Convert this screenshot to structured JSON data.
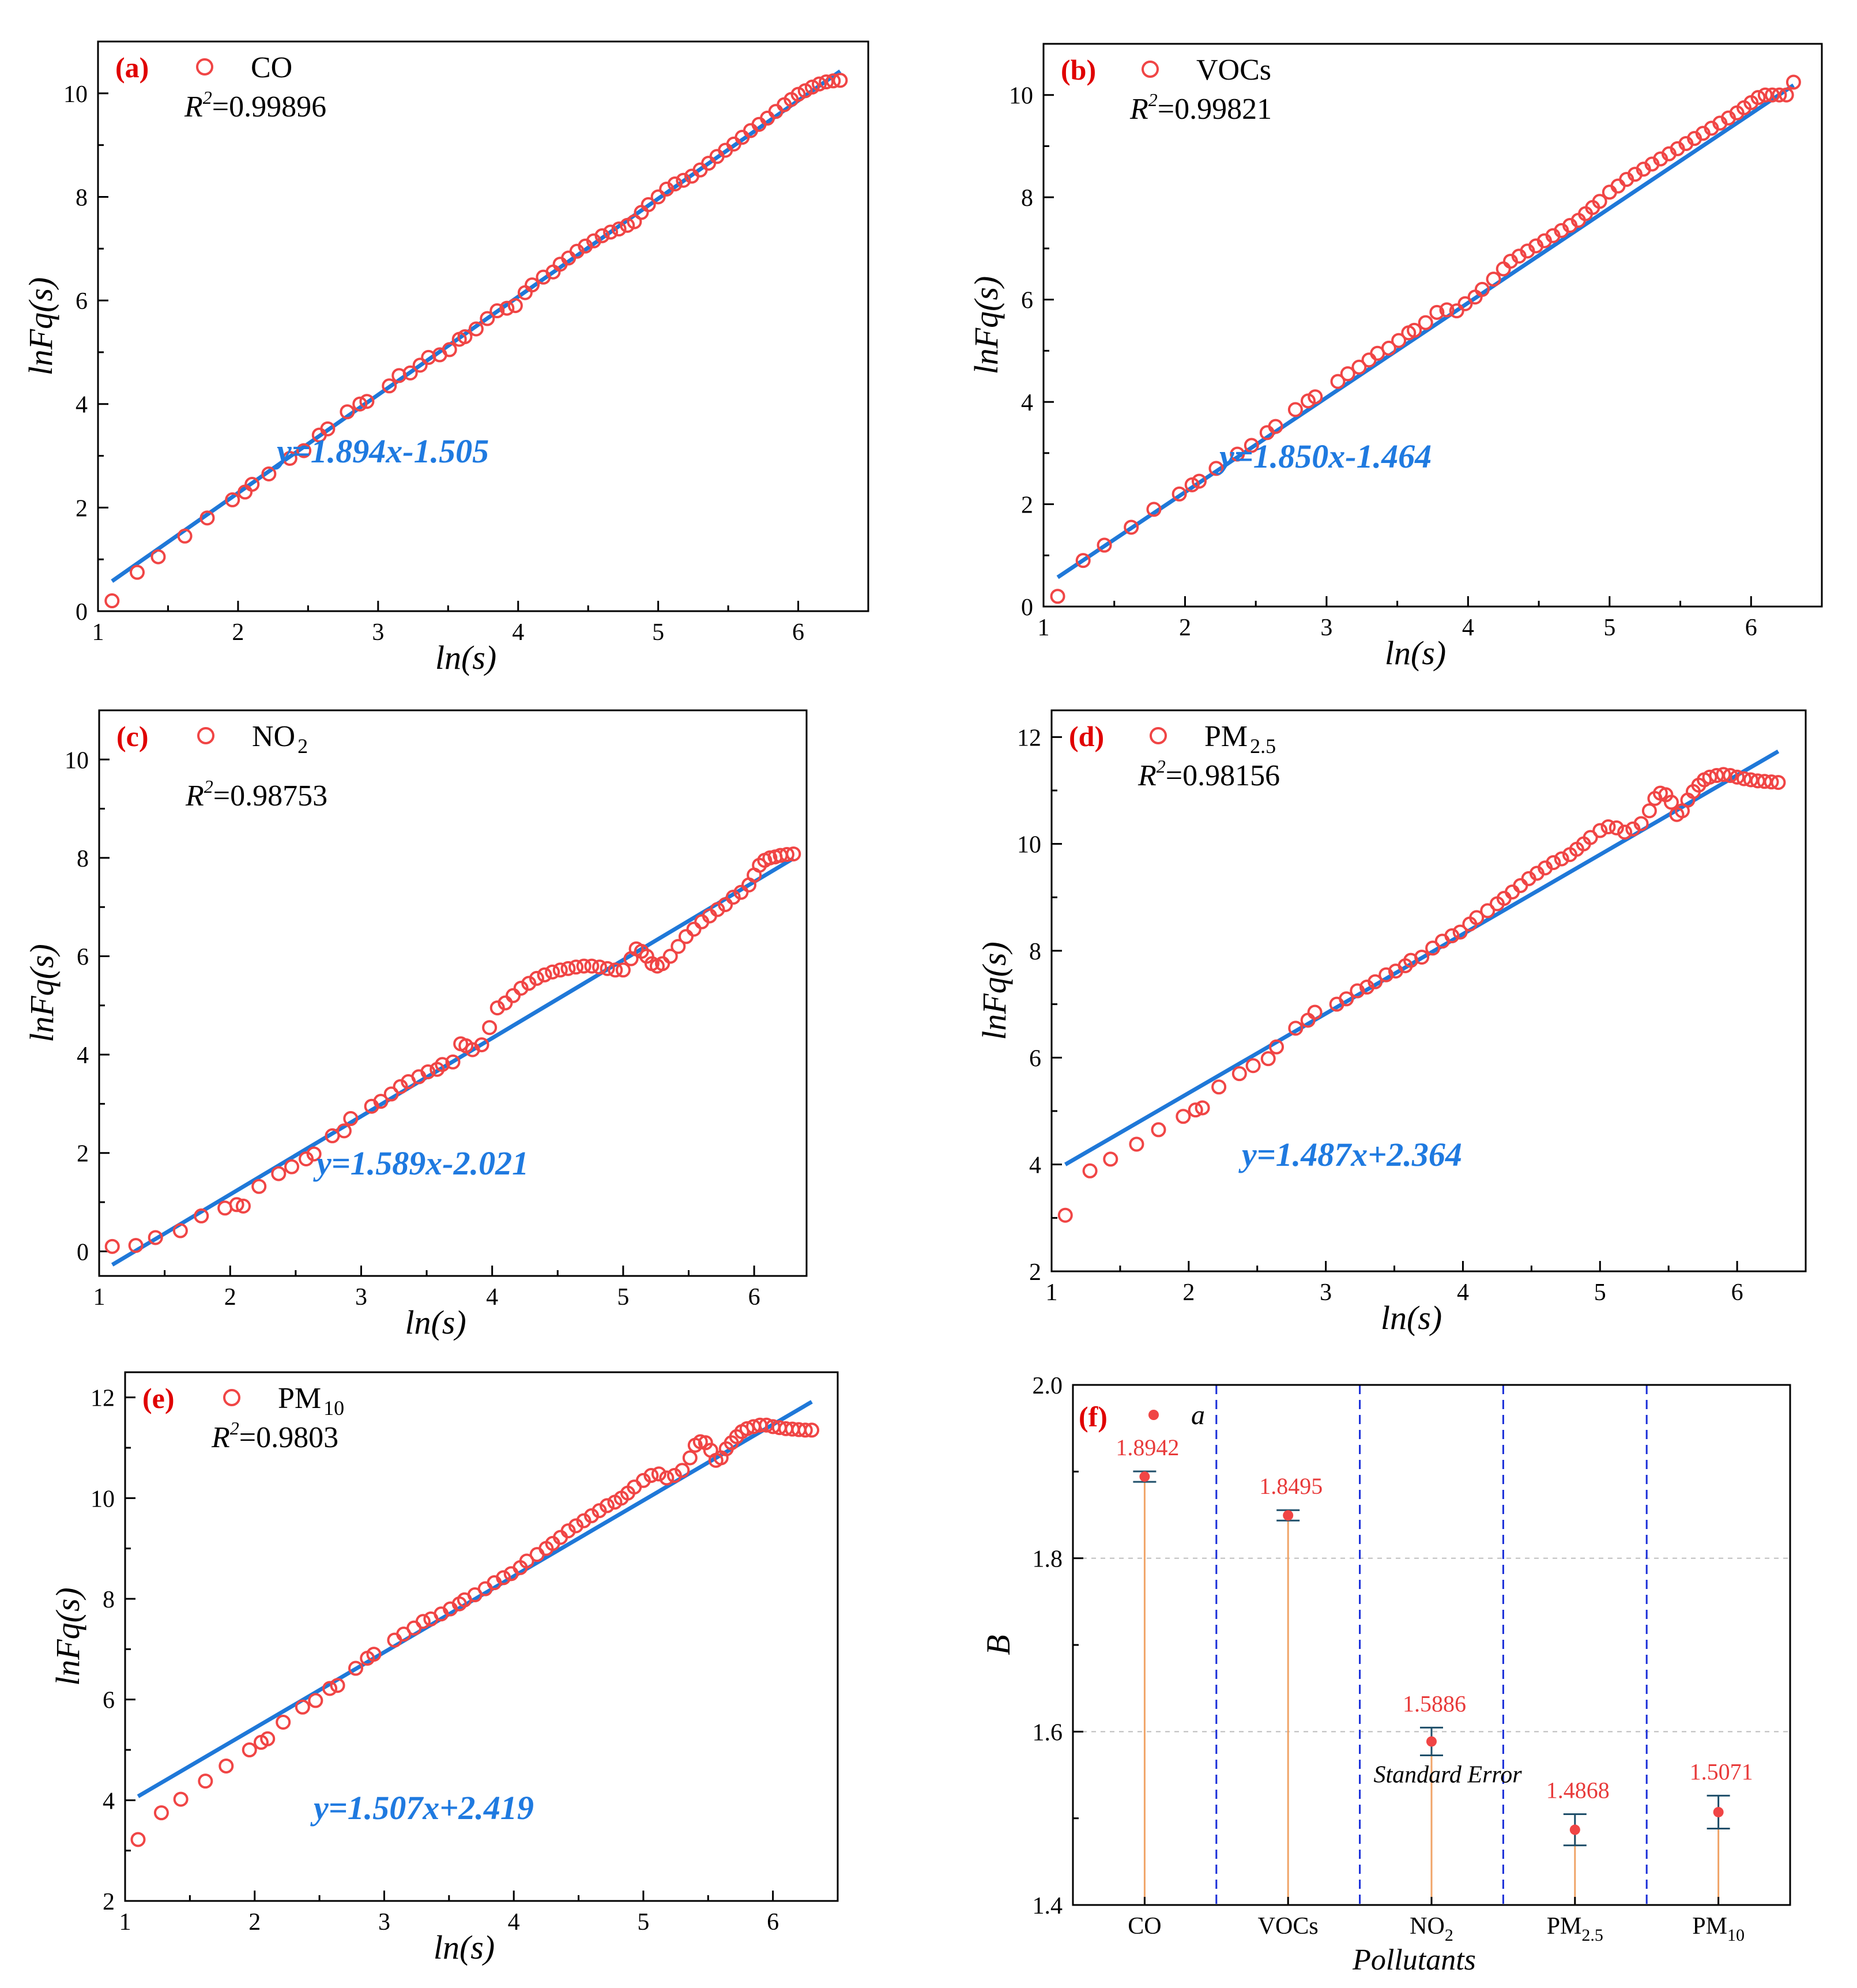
{
  "colors": {
    "marker": "#f04545",
    "fit": "#1f78d8",
    "stem": "#f0a468",
    "divider": "#1a2fd8",
    "errorbar": "#1f4f6a",
    "label": "#e83a3a",
    "tag": "#e00000"
  },
  "chart_data": [
    {
      "type": "scatter",
      "panel": "(a)",
      "legend": {
        "label": "CO",
        "sub": ""
      },
      "r2": {
        "prefix": "R",
        "sup": "2",
        "value": "=0.99896"
      },
      "equation": "y=1.894x-1.505",
      "fit": {
        "slope": 1.894,
        "intercept": -1.505,
        "x_range": [
          1.1,
          6.3
        ]
      },
      "xlabel": "ln(s)",
      "ylabel": "lnFq(s)",
      "xlim": [
        1,
        6.5
      ],
      "ylim": [
        0,
        11
      ],
      "xticks": [
        "1",
        "2",
        "3",
        "4",
        "5",
        "6"
      ],
      "yticks": [
        "0",
        "2",
        "4",
        "6",
        "8",
        "10"
      ],
      "points": {
        "x": [
          1.1,
          1.28,
          1.43,
          1.62,
          1.78,
          1.96,
          2.05,
          2.1,
          2.22,
          2.37,
          2.47,
          2.58,
          2.64,
          2.78,
          2.87,
          2.92,
          3.08,
          3.15,
          3.23,
          3.3,
          3.36,
          3.44,
          3.51,
          3.58,
          3.62,
          3.7,
          3.78,
          3.85,
          3.92,
          3.98,
          4.05,
          4.1,
          4.18,
          4.25,
          4.3,
          4.36,
          4.42,
          4.48,
          4.54,
          4.6,
          4.66,
          4.72,
          4.78,
          4.83,
          4.88,
          4.93,
          5.0,
          5.06,
          5.12,
          5.18,
          5.24,
          5.3,
          5.36,
          5.42,
          5.48,
          5.54,
          5.6,
          5.66,
          5.72,
          5.78,
          5.84,
          5.9,
          5.95,
          6.0,
          6.05,
          6.1,
          6.15,
          6.2,
          6.25,
          6.3
        ],
        "y": [
          0.2,
          0.75,
          1.05,
          1.45,
          1.8,
          2.15,
          2.3,
          2.45,
          2.65,
          2.95,
          3.1,
          3.4,
          3.52,
          3.85,
          4.0,
          4.05,
          4.35,
          4.55,
          4.6,
          4.75,
          4.9,
          4.95,
          5.05,
          5.25,
          5.3,
          5.45,
          5.65,
          5.8,
          5.85,
          5.9,
          6.15,
          6.3,
          6.45,
          6.55,
          6.7,
          6.82,
          6.95,
          7.05,
          7.15,
          7.25,
          7.32,
          7.38,
          7.45,
          7.52,
          7.7,
          7.85,
          8.0,
          8.15,
          8.25,
          8.32,
          8.4,
          8.52,
          8.65,
          8.78,
          8.9,
          9.02,
          9.15,
          9.28,
          9.4,
          9.52,
          9.65,
          9.78,
          9.88,
          9.98,
          10.05,
          10.12,
          10.18,
          10.22,
          10.24,
          10.25
        ]
      }
    },
    {
      "type": "scatter",
      "panel": "(b)",
      "legend": {
        "label": "VOCs",
        "sub": ""
      },
      "r2": {
        "prefix": "R",
        "sup": "2",
        "value": "=0.99821"
      },
      "equation": "y=1.850x-1.464",
      "fit": {
        "slope": 1.85,
        "intercept": -1.464,
        "x_range": [
          1.1,
          6.3
        ]
      },
      "xlabel": "ln(s)",
      "ylabel": "lnFq(s)",
      "xlim": [
        1,
        6.5
      ],
      "ylim": [
        0,
        11
      ],
      "xticks": [
        "1",
        "2",
        "3",
        "4",
        "5",
        "6"
      ],
      "yticks": [
        "0",
        "2",
        "4",
        "6",
        "8",
        "10"
      ],
      "points": {
        "x": [
          1.1,
          1.28,
          1.43,
          1.62,
          1.78,
          1.96,
          2.05,
          2.1,
          2.22,
          2.37,
          2.47,
          2.58,
          2.64,
          2.78,
          2.87,
          2.92,
          3.08,
          3.15,
          3.23,
          3.3,
          3.36,
          3.44,
          3.51,
          3.58,
          3.62,
          3.7,
          3.78,
          3.85,
          3.92,
          3.98,
          4.05,
          4.1,
          4.18,
          4.25,
          4.3,
          4.36,
          4.42,
          4.48,
          4.54,
          4.6,
          4.66,
          4.72,
          4.78,
          4.83,
          4.88,
          4.93,
          5.0,
          5.06,
          5.12,
          5.18,
          5.24,
          5.3,
          5.36,
          5.42,
          5.48,
          5.54,
          5.6,
          5.66,
          5.72,
          5.78,
          5.84,
          5.9,
          5.95,
          6.0,
          6.05,
          6.1,
          6.15,
          6.2,
          6.25,
          6.3
        ],
        "y": [
          0.2,
          0.9,
          1.2,
          1.55,
          1.9,
          2.2,
          2.38,
          2.45,
          2.7,
          2.98,
          3.15,
          3.4,
          3.52,
          3.85,
          4.02,
          4.1,
          4.4,
          4.55,
          4.68,
          4.82,
          4.95,
          5.05,
          5.2,
          5.35,
          5.4,
          5.55,
          5.75,
          5.8,
          5.78,
          5.92,
          6.05,
          6.2,
          6.4,
          6.6,
          6.75,
          6.85,
          6.95,
          7.05,
          7.15,
          7.25,
          7.35,
          7.45,
          7.55,
          7.68,
          7.8,
          7.92,
          8.1,
          8.22,
          8.35,
          8.45,
          8.55,
          8.65,
          8.75,
          8.85,
          8.95,
          9.05,
          9.15,
          9.25,
          9.35,
          9.45,
          9.55,
          9.65,
          9.75,
          9.85,
          9.95,
          10.0,
          10.0,
          10.0,
          10.0,
          10.25
        ]
      }
    },
    {
      "type": "scatter",
      "panel": "(c)",
      "legend": {
        "label": "NO",
        "sub": "2"
      },
      "r2": {
        "prefix": "R",
        "sup": "2",
        "value": "=0.98753"
      },
      "equation": "y=1.589x-2.021",
      "fit": {
        "slope": 1.589,
        "intercept": -2.021,
        "x_range": [
          1.1,
          6.3
        ]
      },
      "xlabel": "ln(s)",
      "ylabel": "lnFq(s)",
      "xlim": [
        1,
        6.4
      ],
      "ylim": [
        -0.5,
        11
      ],
      "xticks": [
        "1",
        "2",
        "3",
        "4",
        "5",
        "6"
      ],
      "yticks": [
        "0",
        "2",
        "4",
        "6",
        "8",
        "10"
      ],
      "points": {
        "x": [
          1.1,
          1.28,
          1.43,
          1.62,
          1.78,
          1.96,
          2.05,
          2.1,
          2.22,
          2.37,
          2.47,
          2.58,
          2.64,
          2.78,
          2.87,
          2.92,
          3.08,
          3.15,
          3.23,
          3.3,
          3.36,
          3.44,
          3.51,
          3.58,
          3.62,
          3.7,
          3.76,
          3.8,
          3.85,
          3.92,
          3.98,
          4.04,
          4.1,
          4.16,
          4.22,
          4.28,
          4.34,
          4.4,
          4.46,
          4.52,
          4.58,
          4.64,
          4.7,
          4.76,
          4.82,
          4.88,
          4.94,
          5.0,
          5.06,
          5.1,
          5.14,
          5.18,
          5.22,
          5.26,
          5.3,
          5.36,
          5.42,
          5.48,
          5.54,
          5.6,
          5.66,
          5.72,
          5.78,
          5.84,
          5.9,
          5.96,
          6.0,
          6.04,
          6.08,
          6.12,
          6.16,
          6.2,
          6.25,
          6.3
        ],
        "y": [
          0.1,
          0.12,
          0.28,
          0.42,
          0.72,
          0.88,
          0.95,
          0.92,
          1.32,
          1.58,
          1.72,
          1.88,
          1.98,
          2.35,
          2.45,
          2.7,
          2.95,
          3.05,
          3.2,
          3.35,
          3.45,
          3.55,
          3.65,
          3.7,
          3.8,
          3.85,
          4.22,
          4.18,
          4.1,
          4.2,
          4.55,
          4.95,
          5.05,
          5.2,
          5.35,
          5.45,
          5.55,
          5.62,
          5.68,
          5.72,
          5.75,
          5.78,
          5.8,
          5.8,
          5.78,
          5.75,
          5.72,
          5.72,
          5.95,
          6.15,
          6.1,
          6.0,
          5.85,
          5.8,
          5.85,
          6.0,
          6.2,
          6.4,
          6.55,
          6.7,
          6.82,
          6.95,
          7.05,
          7.2,
          7.3,
          7.45,
          7.65,
          7.85,
          7.95,
          8.0,
          8.02,
          8.05,
          8.07,
          8.08
        ]
      }
    },
    {
      "type": "scatter",
      "panel": "(d)",
      "legend": {
        "label": "PM",
        "sub": "2.5"
      },
      "r2": {
        "prefix": "R",
        "sup": "2",
        "value": "=0.98156"
      },
      "equation": "y=1.487x+2.364",
      "fit": {
        "slope": 1.487,
        "intercept": 2.364,
        "x_range": [
          1.1,
          6.3
        ]
      },
      "xlabel": "ln(s)",
      "ylabel": "lnFq(s)",
      "xlim": [
        1,
        6.5
      ],
      "ylim": [
        2,
        12.5
      ],
      "xticks": [
        "1",
        "2",
        "3",
        "4",
        "5",
        "6"
      ],
      "yticks": [
        "2",
        "4",
        "6",
        "8",
        "10",
        "12"
      ],
      "points": {
        "x": [
          1.1,
          1.28,
          1.43,
          1.62,
          1.78,
          1.96,
          2.05,
          2.1,
          2.22,
          2.37,
          2.47,
          2.58,
          2.64,
          2.78,
          2.87,
          2.92,
          3.08,
          3.15,
          3.23,
          3.3,
          3.36,
          3.44,
          3.51,
          3.58,
          3.62,
          3.7,
          3.78,
          3.85,
          3.92,
          3.98,
          4.05,
          4.1,
          4.18,
          4.25,
          4.3,
          4.36,
          4.42,
          4.48,
          4.54,
          4.6,
          4.66,
          4.72,
          4.78,
          4.83,
          4.88,
          4.93,
          5.0,
          5.06,
          5.12,
          5.18,
          5.24,
          5.3,
          5.36,
          5.4,
          5.44,
          5.48,
          5.52,
          5.56,
          5.6,
          5.64,
          5.68,
          5.72,
          5.76,
          5.8,
          5.85,
          5.9,
          5.95,
          6.0,
          6.05,
          6.1,
          6.15,
          6.2,
          6.25,
          6.3
        ],
        "y": [
          3.05,
          3.88,
          4.1,
          4.38,
          4.65,
          4.9,
          5.02,
          5.06,
          5.45,
          5.7,
          5.85,
          5.98,
          6.2,
          6.55,
          6.7,
          6.85,
          7.0,
          7.1,
          7.25,
          7.32,
          7.42,
          7.55,
          7.62,
          7.72,
          7.82,
          7.88,
          8.05,
          8.18,
          8.28,
          8.35,
          8.5,
          8.62,
          8.75,
          8.88,
          8.98,
          9.1,
          9.22,
          9.35,
          9.45,
          9.55,
          9.65,
          9.72,
          9.8,
          9.9,
          10.0,
          10.12,
          10.25,
          10.32,
          10.3,
          10.22,
          10.28,
          10.38,
          10.62,
          10.85,
          10.95,
          10.92,
          10.78,
          10.55,
          10.62,
          10.82,
          10.98,
          11.1,
          11.2,
          11.25,
          11.28,
          11.3,
          11.28,
          11.25,
          11.22,
          11.2,
          11.18,
          11.17,
          11.16,
          11.15
        ]
      }
    },
    {
      "type": "scatter",
      "panel": "(e)",
      "legend": {
        "label": "PM",
        "sub": "10"
      },
      "r2": {
        "prefix": "R",
        "sup": "2",
        "value": "=0.9803"
      },
      "equation": "y=1.507x+2.419",
      "fit": {
        "slope": 1.507,
        "intercept": 2.419,
        "x_range": [
          1.1,
          6.3
        ]
      },
      "xlabel": "ln(s)",
      "ylabel": "lnFq(s)",
      "xlim": [
        1,
        6.5
      ],
      "ylim": [
        2,
        12.5
      ],
      "xticks": [
        "1",
        "2",
        "3",
        "4",
        "5",
        "6"
      ],
      "yticks": [
        "2",
        "4",
        "6",
        "8",
        "10",
        "12"
      ],
      "points": {
        "x": [
          1.1,
          1.28,
          1.43,
          1.62,
          1.78,
          1.96,
          2.05,
          2.1,
          2.22,
          2.37,
          2.47,
          2.58,
          2.64,
          2.78,
          2.87,
          2.92,
          3.08,
          3.15,
          3.23,
          3.3,
          3.36,
          3.44,
          3.51,
          3.58,
          3.62,
          3.7,
          3.78,
          3.85,
          3.92,
          3.98,
          4.05,
          4.1,
          4.18,
          4.25,
          4.3,
          4.36,
          4.42,
          4.48,
          4.54,
          4.6,
          4.66,
          4.72,
          4.78,
          4.83,
          4.88,
          4.93,
          5.0,
          5.06,
          5.12,
          5.18,
          5.24,
          5.3,
          5.36,
          5.4,
          5.44,
          5.48,
          5.52,
          5.56,
          5.6,
          5.64,
          5.68,
          5.72,
          5.76,
          5.8,
          5.85,
          5.9,
          5.95,
          6.0,
          6.05,
          6.1,
          6.15,
          6.2,
          6.25,
          6.3
        ],
        "y": [
          3.22,
          3.75,
          4.02,
          4.38,
          4.68,
          5.0,
          5.15,
          5.22,
          5.55,
          5.85,
          5.98,
          6.22,
          6.28,
          6.62,
          6.82,
          6.9,
          7.18,
          7.3,
          7.42,
          7.55,
          7.6,
          7.7,
          7.8,
          7.9,
          7.98,
          8.08,
          8.2,
          8.32,
          8.42,
          8.5,
          8.62,
          8.75,
          8.88,
          9.0,
          9.1,
          9.22,
          9.35,
          9.45,
          9.55,
          9.65,
          9.75,
          9.85,
          9.92,
          10.0,
          10.1,
          10.22,
          10.35,
          10.45,
          10.48,
          10.4,
          10.45,
          10.55,
          10.8,
          11.05,
          11.12,
          11.1,
          10.95,
          10.75,
          10.8,
          10.98,
          11.1,
          11.22,
          11.32,
          11.38,
          11.42,
          11.45,
          11.45,
          11.42,
          11.4,
          11.38,
          11.37,
          11.36,
          11.35,
          11.35
        ]
      }
    },
    {
      "type": "errorbar",
      "panel": "(f)",
      "legend": {
        "label": "a"
      },
      "categories": [
        {
          "main": "CO",
          "sub": ""
        },
        {
          "main": "VOCs",
          "sub": ""
        },
        {
          "main": "NO",
          "sub": "2"
        },
        {
          "main": "PM",
          "sub": "2.5"
        },
        {
          "main": "PM",
          "sub": "10"
        }
      ],
      "values": [
        1.8942,
        1.8495,
        1.5886,
        1.4868,
        1.5071
      ],
      "value_labels": [
        "1.8942",
        "1.8495",
        "1.5886",
        "1.4868",
        "1.5071"
      ],
      "errors": [
        0.006,
        0.006,
        0.016,
        0.018,
        0.019
      ],
      "annotation": "Standard Error",
      "xlabel": "Pollutants",
      "ylabel": "B",
      "ylim": [
        1.4,
        2.0
      ],
      "yticks": [
        "1.4",
        "1.6",
        "1.8",
        "2.0"
      ],
      "gridlines_at": [
        1.6,
        1.8
      ]
    }
  ]
}
